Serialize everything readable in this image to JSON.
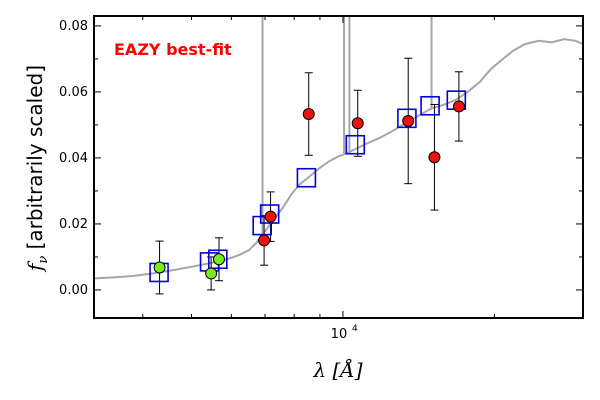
{
  "chart_data": {
    "type": "scatter",
    "title": "",
    "annotation": {
      "text": "EAZY best-fit",
      "color": "#ff0000"
    },
    "ylabel": "f_ν [arbitrarily scaled]",
    "ylabel_symbol": "f",
    "ylabel_subscript": "ν",
    "ylabel_rest": " [arbitrarily scaled]",
    "xlabel": "λ [Å]",
    "xlabel_symbol": "λ",
    "xlabel_rest": " [Å]",
    "x_scale": "log",
    "xlim": [
      3200,
      30000
    ],
    "ylim": [
      -0.0085,
      0.083
    ],
    "x_tick_labels": [
      {
        "x": 10000,
        "base": "10",
        "exp": "4"
      }
    ],
    "x_major_ticks": [
      10000
    ],
    "x_minor_ticks": [
      4000,
      5000,
      6000,
      7000,
      8000,
      9000,
      20000
    ],
    "y_tick_labels": [
      "0.00",
      "0.02",
      "0.04",
      "0.06",
      "0.08"
    ],
    "y_tick_values": [
      0.0,
      0.02,
      0.04,
      0.06,
      0.08
    ],
    "y_minor_ticks": [
      0.01,
      0.03,
      0.05,
      0.07
    ],
    "colors": {
      "template": "#a6a6a6",
      "model_box": "#0000dd",
      "obs_red": "#ee1111",
      "obs_green": "#77ee22",
      "errorbar": "#000000"
    },
    "series": [
      {
        "kind": "template_line",
        "points": [
          [
            3200,
            0.0035
          ],
          [
            3500,
            0.0038
          ],
          [
            3800,
            0.0042
          ],
          [
            4200,
            0.005
          ],
          [
            4600,
            0.006
          ],
          [
            5000,
            0.007
          ],
          [
            5400,
            0.008
          ],
          [
            5800,
            0.009
          ],
          [
            6200,
            0.0105
          ],
          [
            6500,
            0.012
          ],
          [
            6700,
            0.014
          ],
          [
            6900,
            0.0165
          ],
          [
            7100,
            0.019
          ],
          [
            7300,
            0.0215
          ],
          [
            7600,
            0.025
          ],
          [
            7900,
            0.029
          ],
          [
            8200,
            0.032
          ],
          [
            8600,
            0.0345
          ],
          [
            9000,
            0.037
          ],
          [
            9400,
            0.039
          ],
          [
            9800,
            0.0405
          ],
          [
            10200,
            0.0415
          ],
          [
            10700,
            0.043
          ],
          [
            11200,
            0.0445
          ],
          [
            11800,
            0.046
          ],
          [
            12500,
            0.048
          ],
          [
            13300,
            0.0505
          ],
          [
            14200,
            0.053
          ],
          [
            15000,
            0.055
          ],
          [
            15800,
            0.056
          ],
          [
            16700,
            0.0575
          ],
          [
            17700,
            0.06
          ],
          [
            18700,
            0.063
          ],
          [
            19700,
            0.067
          ],
          [
            20800,
            0.07
          ],
          [
            21800,
            0.0725
          ],
          [
            23000,
            0.0745
          ],
          [
            24500,
            0.0755
          ],
          [
            26000,
            0.075
          ],
          [
            27500,
            0.076
          ],
          [
            29000,
            0.0755
          ],
          [
            30000,
            0.0745
          ]
        ],
        "emission_lines": [
          {
            "x": 6920,
            "y": 0.083
          },
          {
            "x": 10050,
            "y": 0.083
          },
          {
            "x": 10300,
            "y": 0.083
          },
          {
            "x": 15000,
            "y": 0.083
          }
        ]
      },
      {
        "kind": "model_photometry",
        "points": [
          [
            4310,
            0.0053
          ],
          [
            5430,
            0.0085
          ],
          [
            5640,
            0.0093
          ],
          [
            6910,
            0.0195
          ],
          [
            7150,
            0.023
          ],
          [
            8460,
            0.034
          ],
          [
            10580,
            0.044
          ],
          [
            13400,
            0.052
          ],
          [
            14900,
            0.0558
          ],
          [
            16800,
            0.0575
          ]
        ]
      },
      {
        "kind": "observed",
        "points": [
          {
            "x": 4320,
            "y": 0.0068,
            "err": 0.008,
            "color": "green"
          },
          {
            "x": 5470,
            "y": 0.005,
            "err": 0.005,
            "color": "green"
          },
          {
            "x": 5670,
            "y": 0.0093,
            "err": 0.0065,
            "color": "green"
          },
          {
            "x": 6970,
            "y": 0.015,
            "err": 0.0075,
            "color": "red"
          },
          {
            "x": 7180,
            "y": 0.0222,
            "err": 0.0075,
            "color": "red"
          },
          {
            "x": 8550,
            "y": 0.0533,
            "err": 0.0125,
            "color": "red"
          },
          {
            "x": 10700,
            "y": 0.0505,
            "err": 0.01,
            "color": "red"
          },
          {
            "x": 13480,
            "y": 0.0512,
            "err": 0.019,
            "color": "red"
          },
          {
            "x": 15200,
            "y": 0.0402,
            "err": 0.016,
            "color": "red"
          },
          {
            "x": 17000,
            "y": 0.0556,
            "err": 0.0105,
            "color": "red"
          }
        ]
      }
    ]
  }
}
